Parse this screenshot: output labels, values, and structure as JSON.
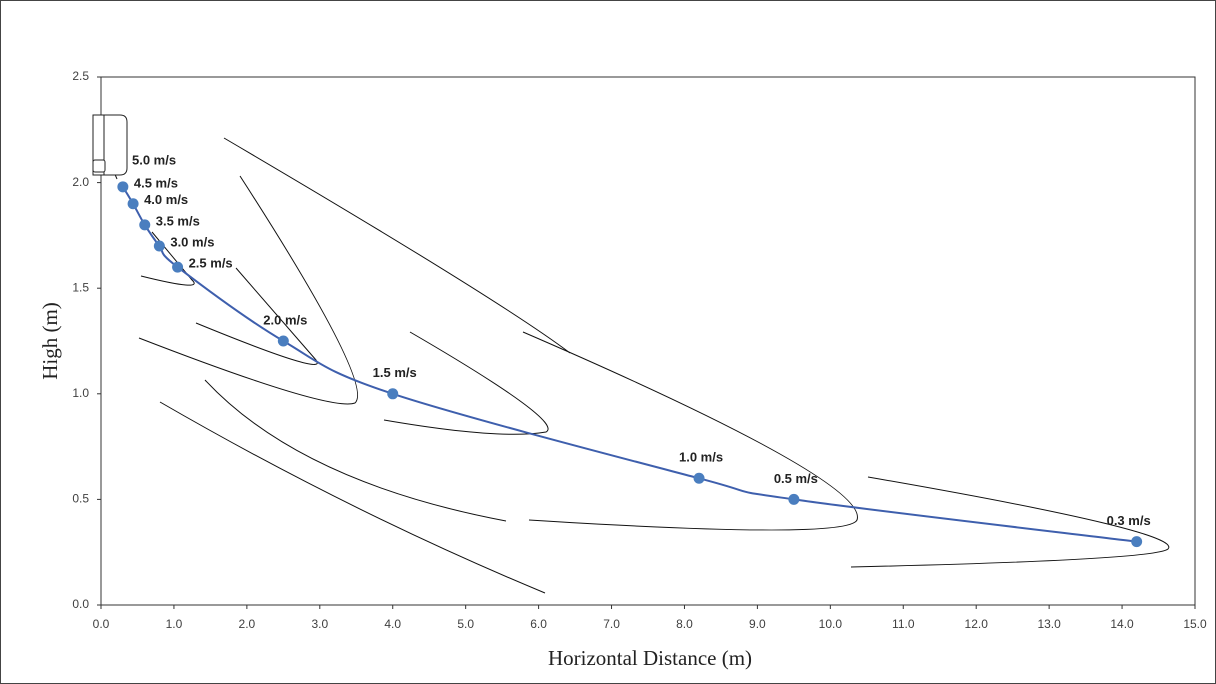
{
  "chart_data": {
    "type": "line",
    "x_label": "Horizontal Distance (m)",
    "y_label": "High (m)",
    "x": [
      0.3,
      0.44,
      0.6,
      0.8,
      1.05,
      2.5,
      4.0,
      8.2,
      9.5,
      14.2
    ],
    "series": [
      {
        "color": "#3e5fad",
        "marker_color": "#4a7ebf",
        "values": [
          1.98,
          1.9,
          1.8,
          1.7,
          1.6,
          1.25,
          1.0,
          0.6,
          0.5,
          0.3
        ],
        "point_labels": [
          "4.5 m/s",
          "4.0 m/s",
          "3.5 m/s",
          "3.0 m/s",
          "2.5 m/s",
          "2.0 m/s",
          "1.5 m/s",
          "1.0 m/s",
          "0.5 m/s",
          "0.3 m/s"
        ]
      }
    ],
    "annotations": [
      "5.0 m/s"
    ],
    "xlim": [
      0,
      15
    ],
    "ylim": [
      0,
      2.5
    ],
    "xticks": [
      {
        "value": 0,
        "label": "0.0"
      },
      {
        "value": 1,
        "label": "1.0"
      },
      {
        "value": 2,
        "label": "2.0"
      },
      {
        "value": 3,
        "label": "3.0"
      },
      {
        "value": 4,
        "label": "4.0"
      },
      {
        "value": 5,
        "label": "5.0"
      },
      {
        "value": 6,
        "label": "6.0"
      },
      {
        "value": 7,
        "label": "7.0"
      },
      {
        "value": 8,
        "label": "8.0"
      },
      {
        "value": 9,
        "label": "9.0"
      },
      {
        "value": 10,
        "label": "10.0"
      },
      {
        "value": 11,
        "label": "11.0"
      },
      {
        "value": 12,
        "label": "12.0"
      },
      {
        "value": 13,
        "label": "13.0"
      },
      {
        "value": 14,
        "label": "14.0"
      },
      {
        "value": 15,
        "label": "15.0"
      }
    ],
    "yticks": [
      {
        "value": 0,
        "label": "0.0"
      },
      {
        "value": 0.5,
        "label": "0.5"
      },
      {
        "value": 1,
        "label": "1.0"
      },
      {
        "value": 1.5,
        "label": "1.5"
      },
      {
        "value": 2,
        "label": "2.0"
      },
      {
        "value": 2.5,
        "label": "2.5"
      }
    ]
  }
}
